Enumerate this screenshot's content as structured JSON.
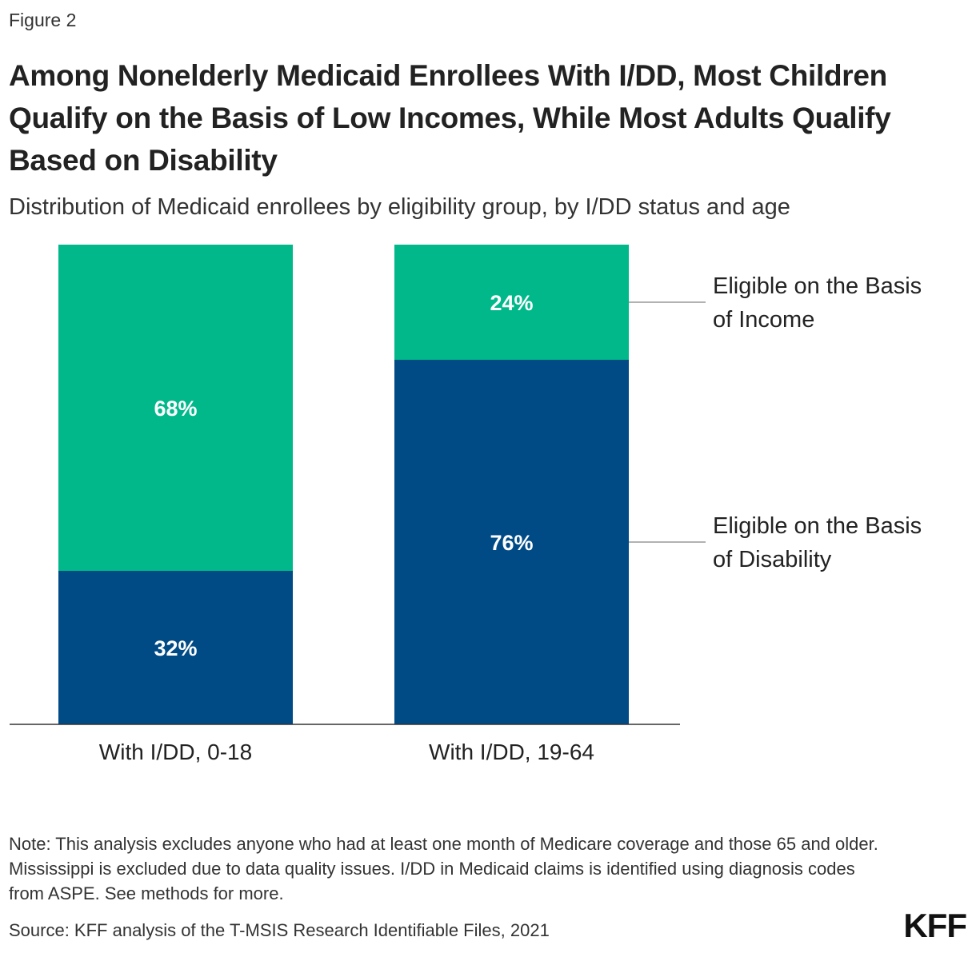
{
  "figure_label": "Figure 2",
  "chart_data": {
    "type": "bar",
    "stacked": true,
    "title": "Among Nonelderly Medicaid Enrollees With I/DD, Most Children Qualify on the Basis of Low Incomes, While Most Adults Qualify Based on Disability",
    "subtitle": "Distribution of Medicaid enrollees by eligibility group, by I/DD status and age",
    "categories": [
      "With I/DD, 0-18",
      "With I/DD, 19-64"
    ],
    "series": [
      {
        "name": "Eligible on the Basis of Disability",
        "legend_lines": [
          "Eligible on the Basis",
          "of Disability"
        ],
        "values": [
          32,
          76
        ],
        "labels": [
          "32%",
          "76%"
        ],
        "color": "#004A86"
      },
      {
        "name": "Eligible on the Basis of Income",
        "legend_lines": [
          "Eligible on the Basis",
          "of Income"
        ],
        "values": [
          68,
          24
        ],
        "labels": [
          "68%",
          "24%"
        ],
        "color": "#00B88A"
      }
    ],
    "ylim": [
      0,
      100
    ],
    "xlabel": "",
    "ylabel": "",
    "legend": "right, annotated at last bar"
  },
  "note": "Note: This analysis excludes anyone who had at least one month of Medicare coverage and those 65 and older. Mississippi is excluded due to data quality issues. I/DD in Medicaid claims is identified using diagnosis codes from ASPE. See methods for more.",
  "source": "Source: KFF analysis of the T-MSIS Research Identifiable Files, 2021",
  "logo_text": "KFF",
  "colors": {
    "axis": "#333333",
    "leader_line": "#999999"
  }
}
